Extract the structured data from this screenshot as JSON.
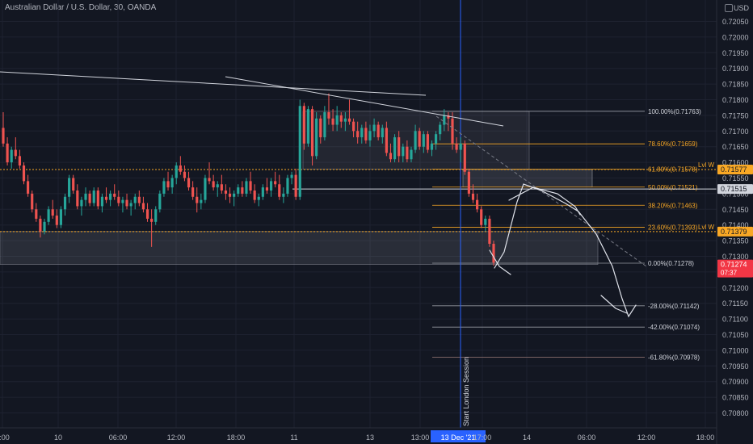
{
  "header": {
    "title": "Australian Dollar / U.S. Dollar, 30, OANDA",
    "currency": "USD"
  },
  "colors": {
    "background": "#131722",
    "grid": "#1e2230",
    "up": "#26a69a",
    "down": "#ef5350",
    "fib": "#f9a825",
    "level": "#d1d4dc",
    "session": "#2962ff",
    "price_tag": "#f23645"
  },
  "chart_data": {
    "type": "candlestick",
    "title": "Australian Dollar / U.S. Dollar, 30, OANDA",
    "y_axis": {
      "min": 0.7075,
      "max": 0.721,
      "ticks": [
        "0.72050",
        "0.72000",
        "0.71950",
        "0.71900",
        "0.71850",
        "0.71800",
        "0.71750",
        "0.71700",
        "0.71650",
        "0.71600",
        "0.71550",
        "0.71500",
        "0.71450",
        "0.71400",
        "0.71350",
        "0.71300",
        "0.71250",
        "0.71200",
        "0.71150",
        "0.71100",
        "0.71050",
        "0.71000",
        "0.70950",
        "0.70900",
        "0.70850",
        "0.70800"
      ]
    },
    "x_axis": {
      "ticks": [
        "2:00",
        "10",
        "06:00",
        "12:00",
        "18:00",
        "11",
        "13",
        "13:00",
        "13 Dec '21",
        "17:00",
        "14",
        "06:00",
        "12:00",
        "18:00"
      ]
    },
    "fib_levels": [
      {
        "label": "100.00%(0.71763)",
        "value": 0.71763
      },
      {
        "label": "78.60%(0.71659)",
        "value": 0.71659
      },
      {
        "label": "61.80%(0.71578)",
        "value": 0.71578
      },
      {
        "label": "50.00%(0.71521)",
        "value": 0.71521
      },
      {
        "label": "38.20%(0.71463)",
        "value": 0.71463
      },
      {
        "label": "23.60%(0.71393)",
        "value": 0.71393
      },
      {
        "label": "0.00%(0.71278)",
        "value": 0.71278
      },
      {
        "label": "-28.00%(0.71142)",
        "value": 0.71142
      },
      {
        "label": "-42.00%(0.71074)",
        "value": 0.71074
      },
      {
        "label": "-61.80%(0.70978)",
        "value": 0.70978
      }
    ],
    "key_levels": [
      {
        "label": "Lvl W",
        "value": 0.71577
      },
      {
        "label": "Lvl W",
        "value": 0.71379
      }
    ],
    "price_tags": [
      {
        "text": "0.71577",
        "value": 0.71577,
        "style": "level"
      },
      {
        "text": "0.71515",
        "value": 0.71515,
        "style": "plain"
      },
      {
        "text": "0.71379",
        "value": 0.71379,
        "style": "level"
      },
      {
        "text": "0.71274",
        "sub": "07:37",
        "value": 0.71274,
        "style": "current"
      }
    ],
    "annotations": {
      "session_label": "Start London Session"
    },
    "candles": [
      [
        0.7171,
        0.7176,
        0.7165,
        0.7166
      ],
      [
        0.7166,
        0.7168,
        0.7159,
        0.716
      ],
      [
        0.716,
        0.7165,
        0.7158,
        0.7164
      ],
      [
        0.7164,
        0.7168,
        0.7161,
        0.7162
      ],
      [
        0.7162,
        0.7164,
        0.7158,
        0.7159
      ],
      [
        0.7159,
        0.716,
        0.7153,
        0.7154
      ],
      [
        0.7154,
        0.7156,
        0.7149,
        0.715
      ],
      [
        0.715,
        0.7151,
        0.7144,
        0.7145
      ],
      [
        0.7145,
        0.7147,
        0.7141,
        0.7142
      ],
      [
        0.7142,
        0.7143,
        0.7136,
        0.7138
      ],
      [
        0.7138,
        0.7142,
        0.7137,
        0.7141
      ],
      [
        0.7141,
        0.7146,
        0.714,
        0.7145
      ],
      [
        0.7145,
        0.7148,
        0.7142,
        0.7143
      ],
      [
        0.7143,
        0.7145,
        0.7139,
        0.714
      ],
      [
        0.714,
        0.7146,
        0.7139,
        0.7145
      ],
      [
        0.7145,
        0.715,
        0.7143,
        0.7149
      ],
      [
        0.7149,
        0.7156,
        0.7147,
        0.7155
      ],
      [
        0.7155,
        0.7156,
        0.715,
        0.7151
      ],
      [
        0.7151,
        0.7153,
        0.7145,
        0.7146
      ],
      [
        0.7146,
        0.7149,
        0.7143,
        0.7148
      ],
      [
        0.7148,
        0.7152,
        0.7146,
        0.715
      ],
      [
        0.715,
        0.7151,
        0.7146,
        0.7147
      ],
      [
        0.7147,
        0.7152,
        0.7146,
        0.7151
      ],
      [
        0.7151,
        0.7152,
        0.7145,
        0.7146
      ],
      [
        0.7146,
        0.715,
        0.7144,
        0.7149
      ],
      [
        0.7149,
        0.7152,
        0.7147,
        0.7148
      ],
      [
        0.7148,
        0.7151,
        0.7146,
        0.715
      ],
      [
        0.715,
        0.7153,
        0.7148,
        0.7149
      ],
      [
        0.7149,
        0.7151,
        0.7146,
        0.7147
      ],
      [
        0.7147,
        0.7149,
        0.7144,
        0.7148
      ],
      [
        0.7148,
        0.715,
        0.7145,
        0.7146
      ],
      [
        0.7146,
        0.7148,
        0.7143,
        0.7147
      ],
      [
        0.7147,
        0.715,
        0.7145,
        0.7149
      ],
      [
        0.7149,
        0.7151,
        0.7146,
        0.7147
      ],
      [
        0.7147,
        0.7149,
        0.7144,
        0.7145
      ],
      [
        0.7145,
        0.7147,
        0.7141,
        0.7142
      ],
      [
        0.7142,
        0.7145,
        0.7133,
        0.7141
      ],
      [
        0.7141,
        0.7146,
        0.714,
        0.7145
      ],
      [
        0.7145,
        0.7151,
        0.7144,
        0.715
      ],
      [
        0.715,
        0.7155,
        0.7149,
        0.7154
      ],
      [
        0.7154,
        0.7157,
        0.7151,
        0.7152
      ],
      [
        0.7152,
        0.7156,
        0.715,
        0.7155
      ],
      [
        0.7155,
        0.716,
        0.7153,
        0.7159
      ],
      [
        0.7159,
        0.7162,
        0.7156,
        0.7157
      ],
      [
        0.7157,
        0.7159,
        0.7154,
        0.7155
      ],
      [
        0.7155,
        0.7157,
        0.7151,
        0.7152
      ],
      [
        0.7152,
        0.7154,
        0.7148,
        0.7149
      ],
      [
        0.7149,
        0.7152,
        0.7144,
        0.7147
      ],
      [
        0.7147,
        0.715,
        0.7145,
        0.7148
      ],
      [
        0.7148,
        0.7156,
        0.7147,
        0.7155
      ],
      [
        0.7155,
        0.716,
        0.7153,
        0.7154
      ],
      [
        0.7154,
        0.7156,
        0.7151,
        0.7152
      ],
      [
        0.7152,
        0.7154,
        0.7149,
        0.7153
      ],
      [
        0.7153,
        0.7156,
        0.715,
        0.7151
      ],
      [
        0.7151,
        0.7153,
        0.7148,
        0.715
      ],
      [
        0.715,
        0.7152,
        0.7147,
        0.7149
      ],
      [
        0.7149,
        0.7151,
        0.7146,
        0.715
      ],
      [
        0.715,
        0.7153,
        0.7149,
        0.7152
      ],
      [
        0.7152,
        0.7154,
        0.7149,
        0.715
      ],
      [
        0.715,
        0.7155,
        0.7149,
        0.7154
      ],
      [
        0.7154,
        0.7157,
        0.715,
        0.7151
      ],
      [
        0.7151,
        0.7153,
        0.7147,
        0.7148
      ],
      [
        0.7148,
        0.715,
        0.7146,
        0.7149
      ],
      [
        0.7149,
        0.7153,
        0.7148,
        0.7152
      ],
      [
        0.7152,
        0.7155,
        0.715,
        0.7151
      ],
      [
        0.7151,
        0.7155,
        0.7149,
        0.7154
      ],
      [
        0.7154,
        0.7157,
        0.7152,
        0.7153
      ],
      [
        0.7153,
        0.7156,
        0.7148,
        0.7149
      ],
      [
        0.7149,
        0.7152,
        0.7147,
        0.715
      ],
      [
        0.715,
        0.7156,
        0.7149,
        0.7155
      ],
      [
        0.7155,
        0.7157,
        0.7153,
        0.7156
      ],
      [
        0.7156,
        0.7158,
        0.7148,
        0.7149
      ],
      [
        0.7149,
        0.718,
        0.7148,
        0.7178
      ],
      [
        0.7178,
        0.7179,
        0.7164,
        0.7166
      ],
      [
        0.7166,
        0.7178,
        0.7165,
        0.7177
      ],
      [
        0.7177,
        0.7178,
        0.7159,
        0.7162
      ],
      [
        0.7162,
        0.7176,
        0.7161,
        0.7174
      ],
      [
        0.7174,
        0.7175,
        0.7166,
        0.7168
      ],
      [
        0.7168,
        0.7178,
        0.7167,
        0.7176
      ],
      [
        0.7176,
        0.7182,
        0.7172,
        0.7174
      ],
      [
        0.7174,
        0.7177,
        0.717,
        0.7172
      ],
      [
        0.7172,
        0.7178,
        0.717,
        0.7175
      ],
      [
        0.7175,
        0.7176,
        0.7171,
        0.7173
      ],
      [
        0.7173,
        0.7176,
        0.717,
        0.7174
      ],
      [
        0.7174,
        0.718,
        0.7172,
        0.7173
      ],
      [
        0.7173,
        0.7174,
        0.7168,
        0.717
      ],
      [
        0.717,
        0.7173,
        0.7166,
        0.7168
      ],
      [
        0.7168,
        0.7172,
        0.7166,
        0.7171
      ],
      [
        0.7171,
        0.7173,
        0.7166,
        0.7167
      ],
      [
        0.7167,
        0.7172,
        0.7165,
        0.717
      ],
      [
        0.717,
        0.7174,
        0.7168,
        0.7172
      ],
      [
        0.7172,
        0.7173,
        0.7167,
        0.7168
      ],
      [
        0.7168,
        0.7172,
        0.7166,
        0.7171
      ],
      [
        0.7171,
        0.7173,
        0.7162,
        0.7163
      ],
      [
        0.7163,
        0.7166,
        0.716,
        0.7161
      ],
      [
        0.7161,
        0.7169,
        0.716,
        0.7168
      ],
      [
        0.7168,
        0.717,
        0.716,
        0.7162
      ],
      [
        0.7162,
        0.7166,
        0.716,
        0.7165
      ],
      [
        0.7165,
        0.7167,
        0.716,
        0.7161
      ],
      [
        0.7161,
        0.7165,
        0.716,
        0.7164
      ],
      [
        0.7164,
        0.7172,
        0.7163,
        0.717
      ],
      [
        0.717,
        0.7171,
        0.7164,
        0.7165
      ],
      [
        0.7165,
        0.717,
        0.7163,
        0.7169
      ],
      [
        0.7169,
        0.717,
        0.7163,
        0.7164
      ],
      [
        0.7164,
        0.7167,
        0.7162,
        0.7166
      ],
      [
        0.7166,
        0.717,
        0.7164,
        0.7169
      ],
      [
        0.7169,
        0.7173,
        0.7167,
        0.7172
      ],
      [
        0.7172,
        0.7177,
        0.717,
        0.7175
      ],
      [
        0.7175,
        0.7176,
        0.717,
        0.7174
      ],
      [
        0.7174,
        0.7176,
        0.7164,
        0.7166
      ],
      [
        0.7166,
        0.7168,
        0.7163,
        0.7164
      ],
      [
        0.7164,
        0.7168,
        0.716,
        0.7166
      ],
      [
        0.7166,
        0.7167,
        0.7156,
        0.7157
      ],
      [
        0.7157,
        0.7158,
        0.7149,
        0.715
      ],
      [
        0.715,
        0.7153,
        0.7147,
        0.7148
      ],
      [
        0.7148,
        0.715,
        0.7144,
        0.7145
      ],
      [
        0.7145,
        0.7146,
        0.7139,
        0.714
      ],
      [
        0.714,
        0.7143,
        0.7138,
        0.7142
      ],
      [
        0.7142,
        0.7143,
        0.7133,
        0.7134
      ],
      [
        0.7134,
        0.7135,
        0.7127,
        0.7128
      ]
    ]
  }
}
